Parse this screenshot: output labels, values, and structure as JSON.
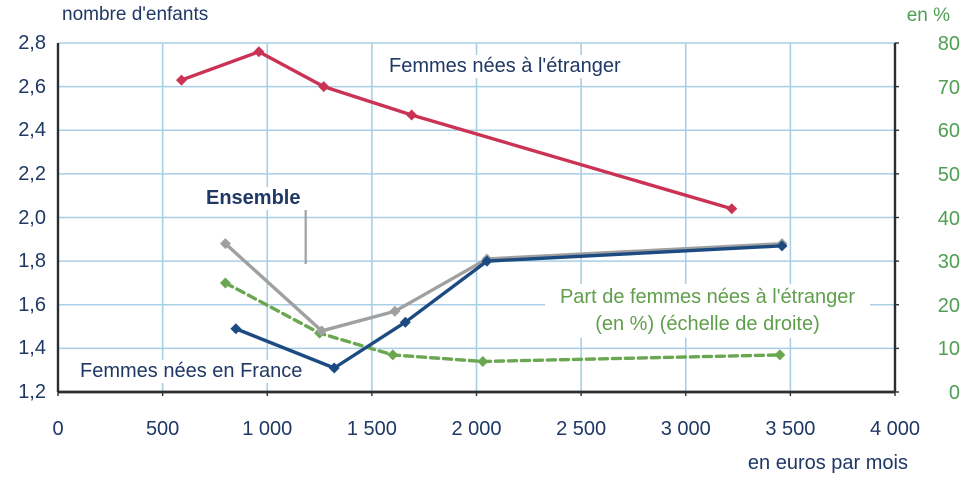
{
  "labels": {
    "left_axis_title": "nombre d'enfants",
    "right_axis_title": "en %",
    "x_axis_title": "en euros  par mois",
    "series_foreign": "Femmes nées à l'étranger",
    "series_ensemble": "Ensemble",
    "series_france": "Femmes nées en France",
    "series_part_line1": "Part de femmes nées à l'étranger",
    "series_part_line2": "(en %) (échelle de droite)"
  },
  "colors": {
    "foreign_line": "#cb3355",
    "ensemble_line": "#a0a0a0",
    "france_line": "#1c4b82",
    "part_line": "#6aa750",
    "navy_text": "#1f3864",
    "green_text": "#4f9e53",
    "gridline": "#a9cfe5",
    "axis": "#2e2e2e"
  },
  "chart_data": {
    "type": "line",
    "title": "",
    "xlabel": "en euros par mois",
    "ylabel_left": "nombre d'enfants",
    "ylabel_right": "en %",
    "x_axis": {
      "min": 0,
      "max": 4000,
      "tick_step": 500,
      "tick_labels": [
        "0",
        "500",
        "1 000",
        "1 500",
        "2 000",
        "2 500",
        "3 000",
        "3 500",
        "4 000"
      ]
    },
    "left_axis": {
      "min": 1.2,
      "max": 2.8,
      "tick_step": 0.2,
      "tick_labels_top_to_bottom": [
        "2,8",
        "2,6",
        "2,4",
        "2,2",
        "2,0",
        "1,8",
        "1,6",
        "1,4",
        "1,2"
      ]
    },
    "right_axis": {
      "min": 0,
      "max": 80,
      "tick_step": 10,
      "tick_labels_top_to_bottom": [
        "80",
        "70",
        "60",
        "50",
        "40",
        "30",
        "20",
        "10",
        "0"
      ]
    },
    "grid": true,
    "legend_position": "inline-annotations",
    "series": [
      {
        "name": "Femmes nées à l'étranger",
        "axis": "left",
        "style": "solid",
        "color_key": "foreign_line",
        "points": [
          [
            590,
            2.63
          ],
          [
            960,
            2.76
          ],
          [
            1270,
            2.6
          ],
          [
            1690,
            2.47
          ],
          [
            3220,
            2.04
          ]
        ]
      },
      {
        "name": "Ensemble",
        "axis": "left",
        "style": "solid",
        "color_key": "ensemble_line",
        "points": [
          [
            800,
            1.88
          ],
          [
            1260,
            1.48
          ],
          [
            1610,
            1.57
          ],
          [
            2050,
            1.81
          ],
          [
            3460,
            1.88
          ]
        ]
      },
      {
        "name": "Femmes nées en France",
        "axis": "left",
        "style": "solid",
        "color_key": "france_line",
        "points": [
          [
            850,
            1.49
          ],
          [
            1320,
            1.31
          ],
          [
            1660,
            1.52
          ],
          [
            2050,
            1.8
          ],
          [
            3460,
            1.87
          ]
        ]
      },
      {
        "name": "Part de femmes nées à l'étranger (en %) (échelle de droite)",
        "axis": "right",
        "style": "dashed",
        "color_key": "part_line",
        "points": [
          [
            800,
            25
          ],
          [
            1250,
            13.5
          ],
          [
            1600,
            8.5
          ],
          [
            2030,
            7
          ],
          [
            3450,
            8.5
          ]
        ]
      }
    ],
    "annotation_leader_line": {
      "from_label": "Ensemble",
      "x": 1910,
      "note": "vertical gray pointer from label to Ensemble line"
    }
  }
}
